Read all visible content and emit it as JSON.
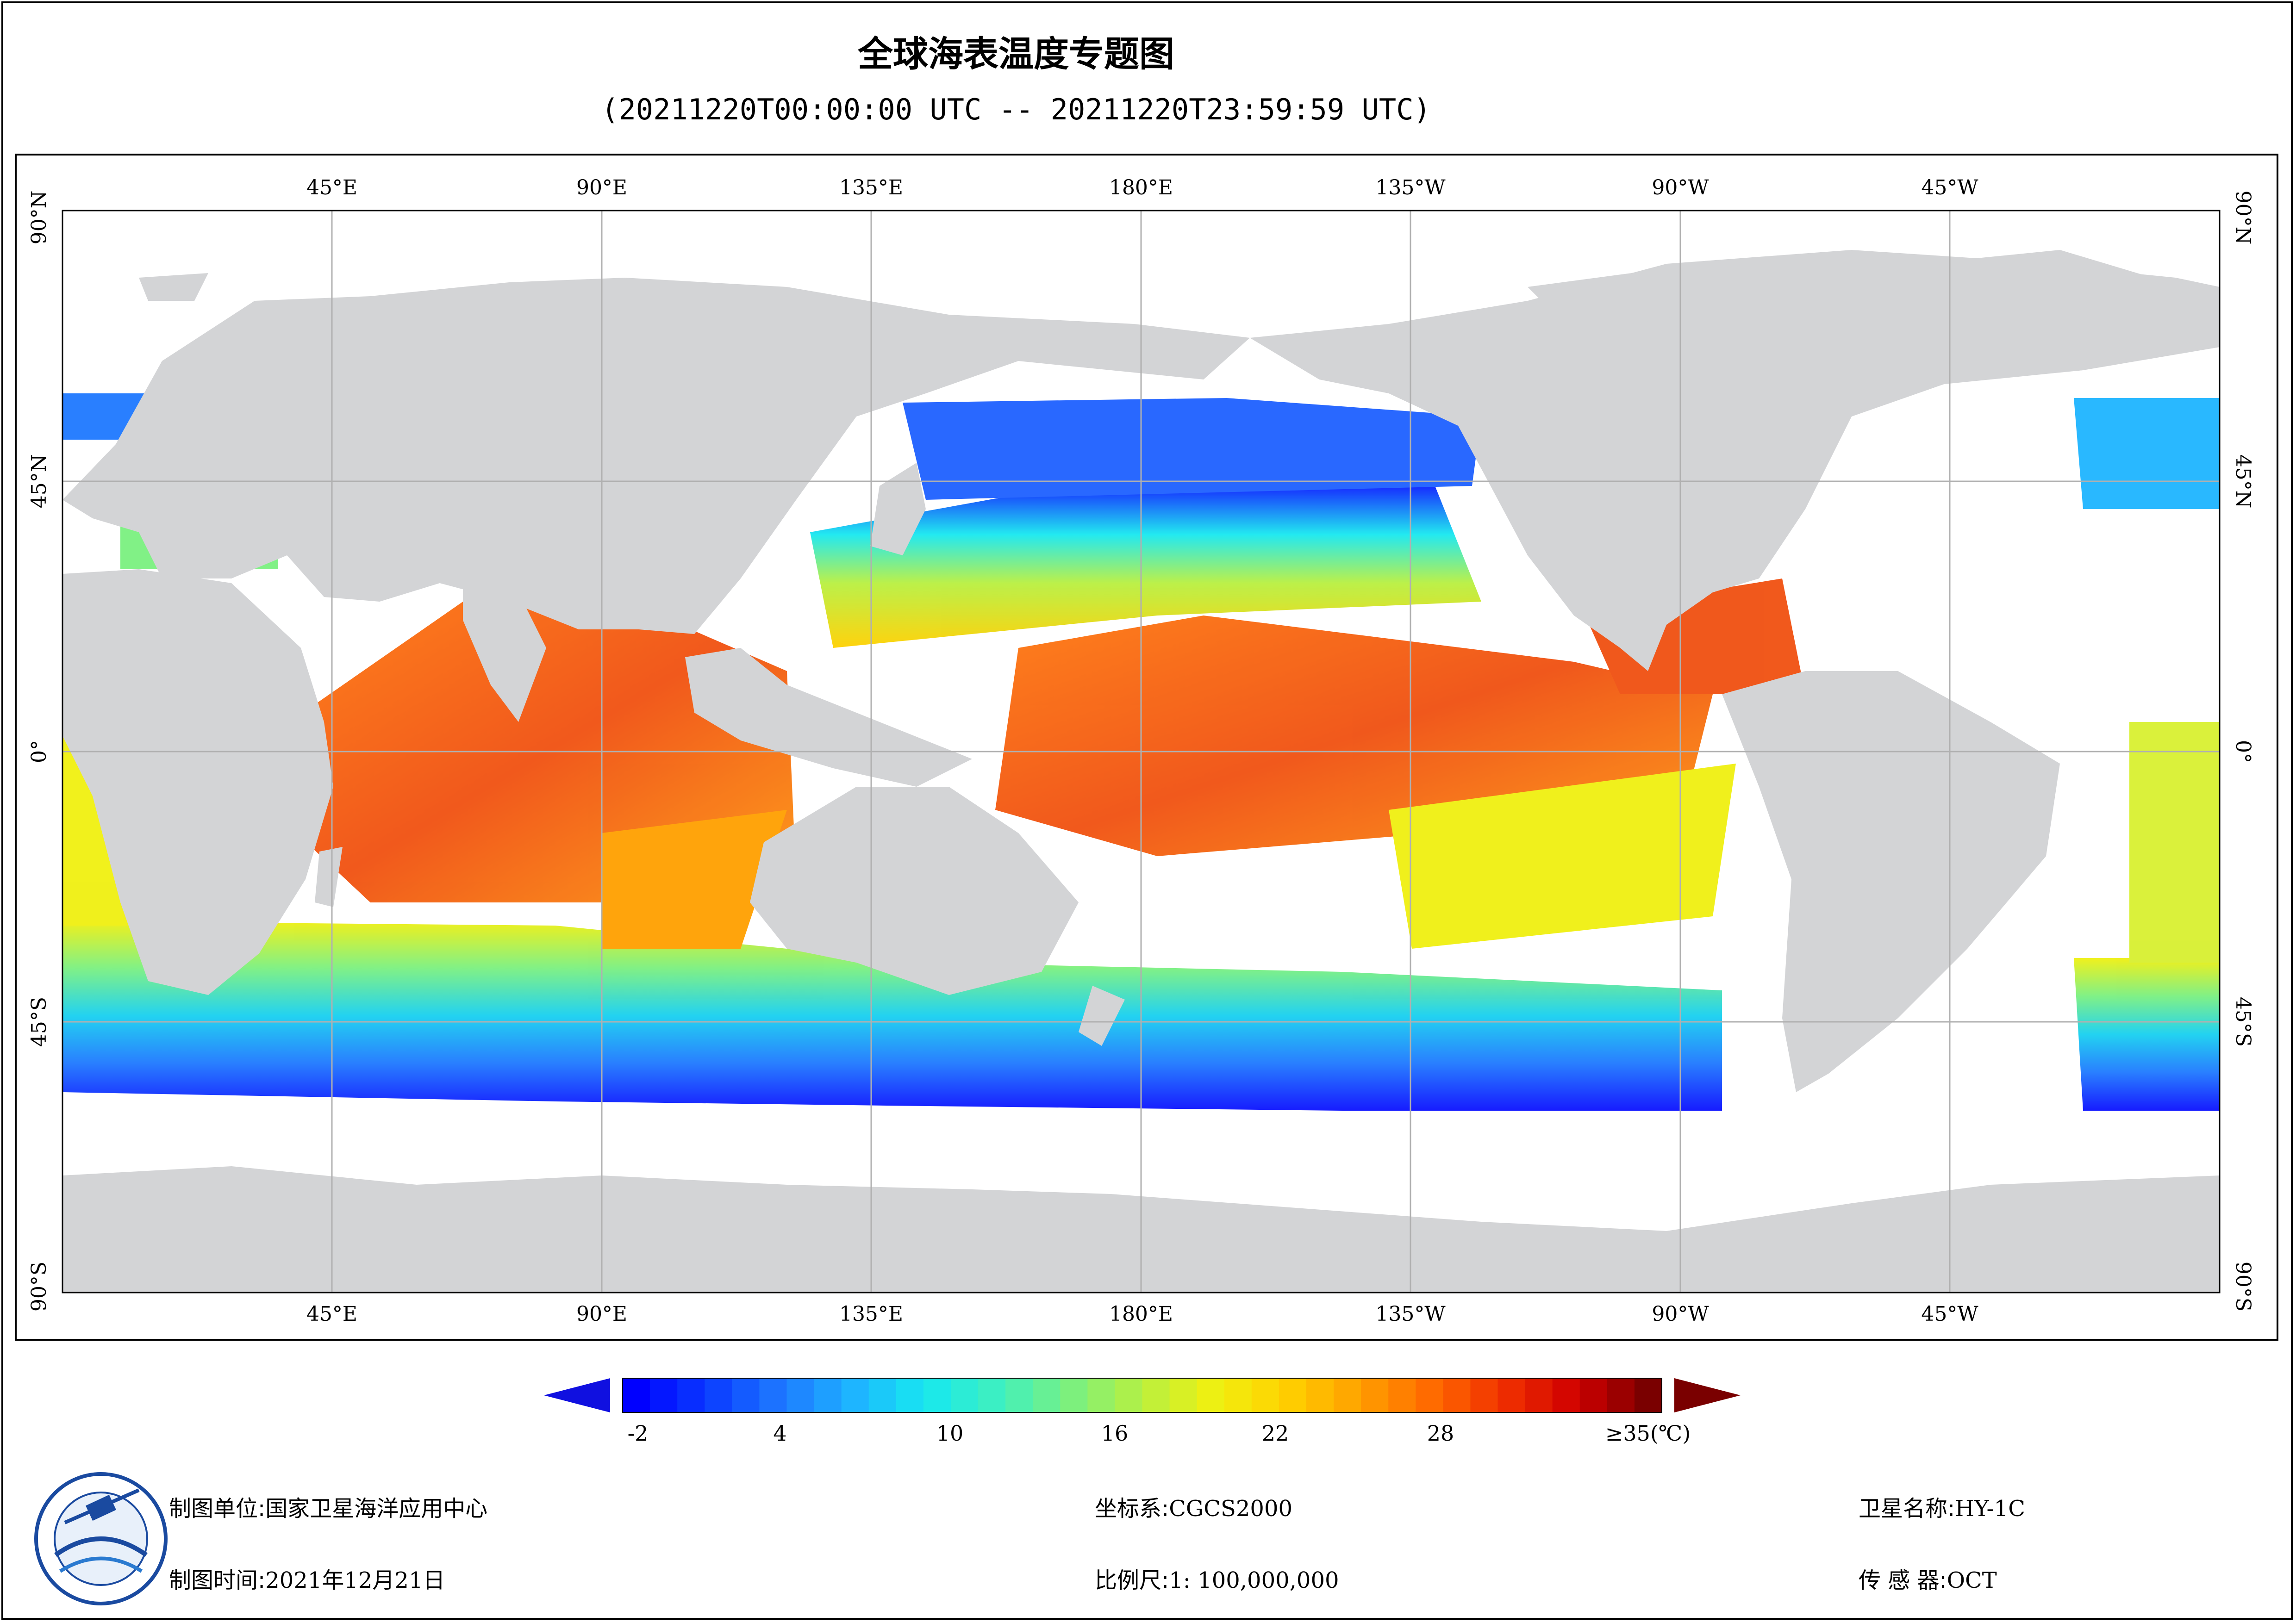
{
  "title": "全球海表温度专题图",
  "subtitle": "(20211220T00:00:00 UTC -- 20211220T23:59:59 UTC)",
  "map": {
    "lon_labels": [
      "45°E",
      "90°E",
      "135°E",
      "180°E",
      "135°W",
      "90°W",
      "45°W"
    ],
    "lat_labels": [
      "90°N",
      "45°N",
      "0°",
      "45°S",
      "90°S"
    ],
    "land_color": "#d3d4d6",
    "ocean_nodata_color": "#ffffff",
    "gridline_color": "#b0b0b0"
  },
  "colorbar": {
    "ticks": [
      "-2",
      "4",
      "10",
      "16",
      "22",
      "28",
      "≥35(℃)"
    ],
    "low_arrow_color": "#1010e0",
    "high_arrow_color": "#7a0000",
    "palette": [
      "#0000ff",
      "#0a3cff",
      "#1e78ff",
      "#1eb4ff",
      "#17e8f0",
      "#3ef0c0",
      "#7af080",
      "#b8f040",
      "#f0f010",
      "#ffd000",
      "#ffa000",
      "#ff6a00",
      "#f03000",
      "#d00000",
      "#7a0000"
    ]
  },
  "footer": {
    "org_label": "制图单位:",
    "org_value": "国家卫星海洋应用中心",
    "time_label": "制图时间:",
    "time_value": "2021年12月21日",
    "crs_label": "坐标系:",
    "crs_value": "CGCS2000",
    "scale_label": "比例尺:",
    "scale_value": "1: 100,000,000",
    "sat_label": "卫星名称:",
    "sat_value": "HY-1C",
    "sensor_label": "传 感 器:",
    "sensor_value": "OCT"
  }
}
